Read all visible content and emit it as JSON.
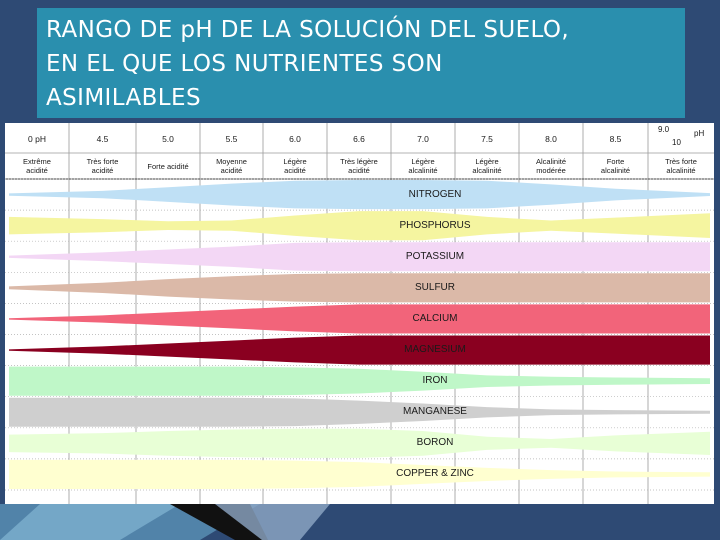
{
  "slide": {
    "title_lines": [
      "RANGO DE pH DE LA SOLUCIÓN DEL SUELO,",
      "EN EL QUE LOS NUTRIENTES SON",
      "ASIMILABLES"
    ]
  },
  "colors": {
    "background": "#2e4a74",
    "title_box": "#2a8fae",
    "title_text": "#ffffff"
  },
  "chart_data": {
    "type": "table",
    "header_ph": [
      {
        "label": "0 pH",
        "ph": 0
      },
      {
        "label": "4.5",
        "ph": 4.5
      },
      {
        "label": "5.0",
        "ph": 5.0
      },
      {
        "label": "5.5",
        "ph": 5.5
      },
      {
        "label": "6.0",
        "ph": 6.0
      },
      {
        "label": "6.6",
        "ph": 6.6
      },
      {
        "label": "7.0",
        "ph": 7.0
      },
      {
        "label": "7.5",
        "ph": 7.5
      },
      {
        "label": "8.0",
        "ph": 8.0
      },
      {
        "label": "8.5",
        "ph": 8.5
      }
    ],
    "last_column": {
      "top": "9.0",
      "unit": "pH",
      "bottom": "10"
    },
    "categories": [
      [
        "Extrême",
        "acidité"
      ],
      [
        "Très forte",
        "acidité"
      ],
      [
        "Forte acidité"
      ],
      [
        "Moyenne",
        "acidité"
      ],
      [
        "Légère",
        "acidité"
      ],
      [
        "Très légère",
        "acidité"
      ],
      [
        "Légère",
        "alcalinité"
      ],
      [
        "Légère",
        "alcalinité"
      ],
      [
        "Alcalinité",
        "modérée"
      ],
      [
        "Forte",
        "alcalinité"
      ],
      [
        "Très forte",
        "alcalinité"
      ]
    ],
    "nutrients": [
      {
        "name": "NITROGEN",
        "color": "#bfe0f5",
        "profile": [
          0.08,
          0.25,
          0.5,
          0.75,
          0.95,
          1,
          1,
          0.95,
          0.7,
          0.4,
          0.1
        ]
      },
      {
        "name": "PHOSPHORUS",
        "color": "#f5f5a0",
        "profile": [
          0.6,
          0.45,
          0.3,
          0.35,
          0.7,
          1,
          1,
          0.6,
          0.35,
          0.55,
          0.85
        ]
      },
      {
        "name": "POTASSIUM",
        "color": "#f3d7f5",
        "profile": [
          0.08,
          0.3,
          0.5,
          0.7,
          0.95,
          1,
          1,
          1,
          1,
          1,
          1
        ]
      },
      {
        "name": "SULFUR",
        "color": "#dbb9a8",
        "profile": [
          0.1,
          0.35,
          0.6,
          0.8,
          0.95,
          1,
          1,
          1,
          1,
          1,
          1
        ]
      },
      {
        "name": "CALCIUM",
        "color": "#f2647a",
        "profile": [
          0.05,
          0.25,
          0.45,
          0.65,
          0.85,
          1,
          1,
          1,
          1,
          1,
          1
        ]
      },
      {
        "name": "MAGNESIUM",
        "color": "#8a0020",
        "profile": [
          0.05,
          0.25,
          0.45,
          0.65,
          0.85,
          1,
          1,
          1,
          1,
          1,
          1
        ]
      },
      {
        "name": "IRON",
        "color": "#bff7c8",
        "profile": [
          1,
          1,
          1,
          1,
          0.95,
          0.85,
          0.65,
          0.4,
          0.3,
          0.25,
          0.2
        ]
      },
      {
        "name": "MANGANESE",
        "color": "#cfcfcf",
        "profile": [
          1,
          1,
          1,
          1,
          0.95,
          0.8,
          0.6,
          0.35,
          0.2,
          0.15,
          0.1
        ]
      },
      {
        "name": "BORON",
        "color": "#e8ffd6",
        "profile": [
          0.6,
          0.7,
          0.85,
          0.95,
          1,
          1,
          0.85,
          0.45,
          0.3,
          0.55,
          0.8
        ]
      },
      {
        "name": "COPPER & ZINC",
        "color": "#ffffd0",
        "profile": [
          1,
          1,
          1,
          1,
          0.95,
          0.85,
          0.65,
          0.45,
          0.3,
          0.2,
          0.15
        ]
      }
    ]
  }
}
